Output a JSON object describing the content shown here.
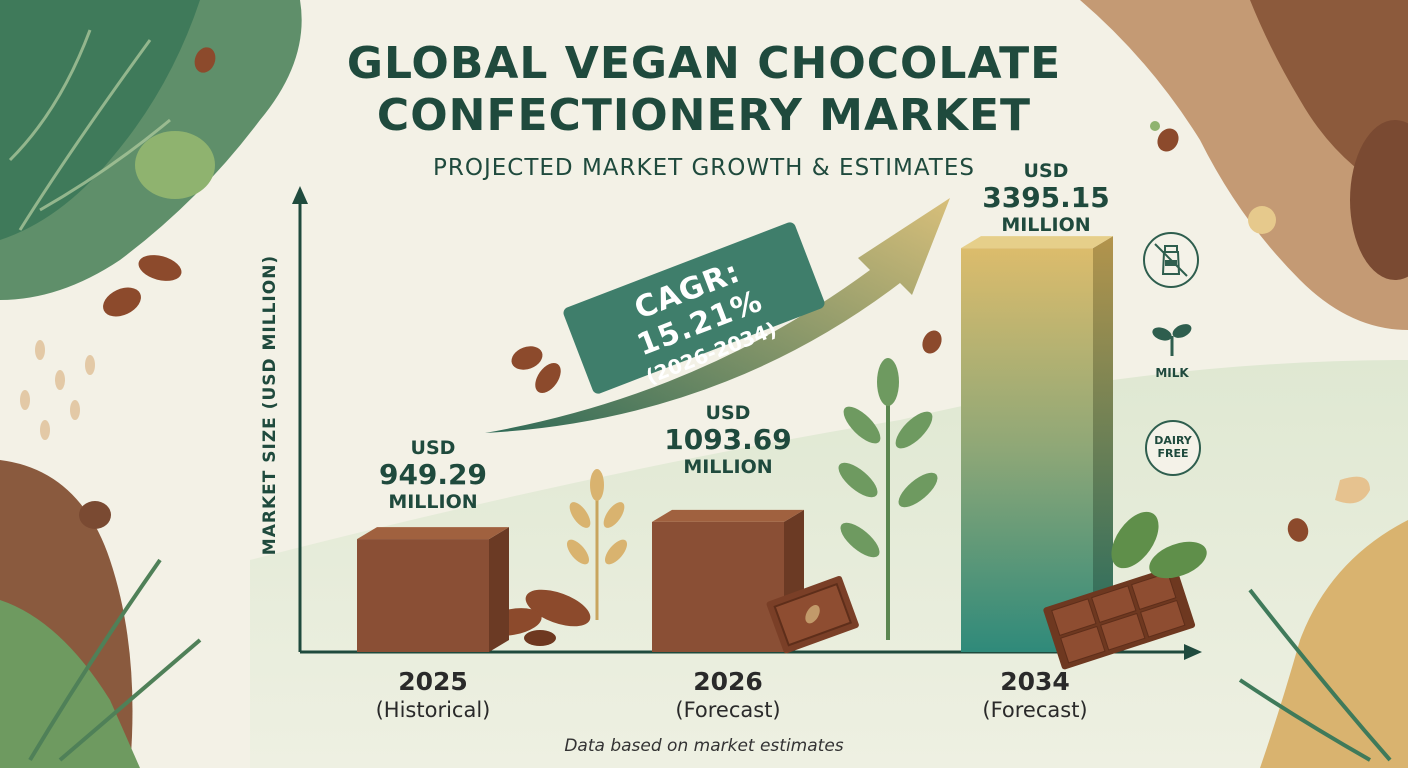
{
  "title": {
    "line1": "GLOBAL VEGAN CHOCOLATE",
    "line2": "CONFECTIONERY MARKET",
    "subtitle": "PROJECTED MARKET GROWTH & ESTIMATES"
  },
  "footnote": "Data based on market estimates",
  "cagr": {
    "label": "CAGR: 15.21%",
    "period": "(2026-2034)"
  },
  "badges": {
    "milk": "MILK",
    "dairy_free_line1": "DAIRY",
    "dairy_free_line2": "FREE"
  },
  "icons": [
    "no-milk-bottle-icon",
    "plant-sprout-icon",
    "dairy-free-badge-icon",
    "cocoa-pod-icon",
    "leaf-icon",
    "chocolate-bar-icon",
    "arrow-up-icon"
  ],
  "colors": {
    "title": "#1f4a3d",
    "chocolate_block": "#8a4f35",
    "forecast_bar_top": "#d9b96a",
    "forecast_bar_bottom": "#2f8a7a",
    "cagr_box": "#3f7e6b"
  },
  "chart_data": {
    "type": "bar",
    "title": "GLOBAL VEGAN CHOCOLATE CONFECTIONERY MARKET",
    "subtitle": "PROJECTED MARKET GROWTH & ESTIMATES",
    "ylabel": "MARKET SIZE (USD MILLION)",
    "xlabel": "",
    "categories": [
      "2025",
      "2026",
      "2034"
    ],
    "category_notes": [
      "(Historical)",
      "(Forecast)",
      "(Forecast)"
    ],
    "values": [
      949.29,
      1093.69,
      3395.15
    ],
    "value_labels": [
      {
        "currency": "USD",
        "number": "949.29",
        "unit": "MILLION"
      },
      {
        "currency": "USD",
        "number": "1093.69",
        "unit": "MILLION"
      },
      {
        "currency": "USD",
        "number": "3395.15",
        "unit": "MILLION"
      }
    ],
    "ylim": [
      0,
      3800
    ],
    "grid": false,
    "annotations": [
      "CAGR: 15.21%",
      "(2026-2034)"
    ]
  }
}
